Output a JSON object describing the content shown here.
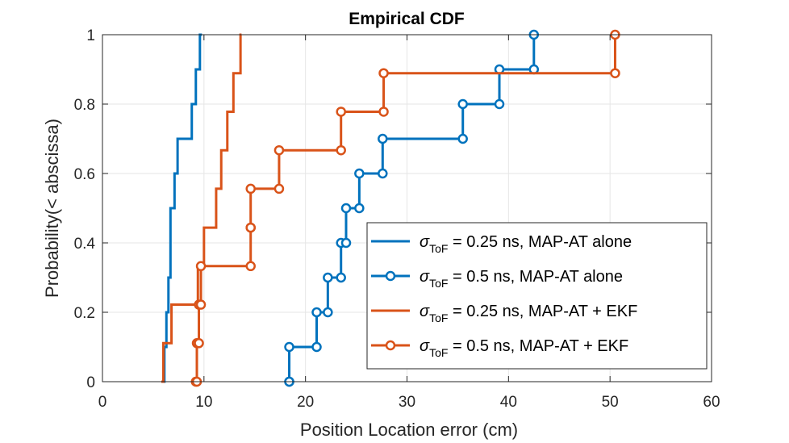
{
  "chart_data": {
    "type": "line",
    "subtype": "empirical-cdf-stairs",
    "title": "Empirical CDF",
    "xlabel": "Position Location error (cm)",
    "ylabel": "Probability(< abscissa)",
    "xlim": [
      0,
      60
    ],
    "ylim": [
      0,
      1
    ],
    "xticks": [
      0,
      10,
      20,
      30,
      40,
      50,
      60
    ],
    "yticks": [
      0,
      0.2,
      0.4,
      0.6,
      0.8,
      1
    ],
    "xtick_labels": [
      "0",
      "10",
      "20",
      "30",
      "40",
      "50",
      "60"
    ],
    "ytick_labels": [
      "0",
      "0.2",
      "0.4",
      "0.6",
      "0.8",
      "1"
    ],
    "grid": true,
    "legend_position": "bottom-right",
    "colors": {
      "blue": "#0072BD",
      "orange": "#D95319",
      "grid": "#e6e6e6",
      "axis": "#262626"
    },
    "series": [
      {
        "name": "0.25 ns, MAP-AT alone",
        "color": "#0072BD",
        "marker": "none",
        "steps": [
          [
            5.9,
            0
          ],
          [
            6.1,
            0.1
          ],
          [
            6.3,
            0.2
          ],
          [
            6.5,
            0.3
          ],
          [
            6.7,
            0.5
          ],
          [
            7.1,
            0.6
          ],
          [
            7.4,
            0.7
          ],
          [
            8.8,
            0.8
          ],
          [
            9.2,
            0.9
          ],
          [
            9.6,
            1.0
          ]
        ],
        "x_end": 9.8
      },
      {
        "name": "0.5 ns, MAP-AT alone",
        "color": "#0072BD",
        "marker": "circle",
        "steps": [
          [
            18.4,
            0
          ],
          [
            18.4,
            0.1
          ],
          [
            21.1,
            0.2
          ],
          [
            22.2,
            0.3
          ],
          [
            23.5,
            0.4
          ],
          [
            24.0,
            0.5
          ],
          [
            25.3,
            0.6
          ],
          [
            27.6,
            0.7
          ],
          [
            35.5,
            0.8
          ],
          [
            39.1,
            0.9
          ],
          [
            42.5,
            1.0
          ]
        ],
        "x_end": 42.5
      },
      {
        "name": "0.25 ns, MAP-AT + EKF",
        "color": "#D95319",
        "marker": "none",
        "steps": [
          [
            5.8,
            0
          ],
          [
            6.0,
            0.111
          ],
          [
            6.8,
            0.222
          ],
          [
            9.4,
            0.333
          ],
          [
            10.0,
            0.444
          ],
          [
            11.2,
            0.556
          ],
          [
            11.7,
            0.667
          ],
          [
            12.3,
            0.778
          ],
          [
            12.9,
            0.889
          ],
          [
            13.6,
            1.0
          ]
        ],
        "x_end": 13.7
      },
      {
        "name": "0.5 ns, MAP-AT + EKF",
        "color": "#D95319",
        "marker": "circle",
        "steps": [
          [
            9.2,
            0
          ],
          [
            9.3,
            0.111
          ],
          [
            9.5,
            0.222
          ],
          [
            9.7,
            0.333
          ],
          [
            14.6,
            0.444
          ],
          [
            14.6,
            0.556
          ],
          [
            17.4,
            0.667
          ],
          [
            23.5,
            0.778
          ],
          [
            27.7,
            0.889
          ],
          [
            50.5,
            1.0
          ]
        ],
        "x_end": 50.5
      }
    ],
    "legend": {
      "symbol_main": "σ",
      "symbol_sub": "ToF",
      "equals": "="
    }
  }
}
